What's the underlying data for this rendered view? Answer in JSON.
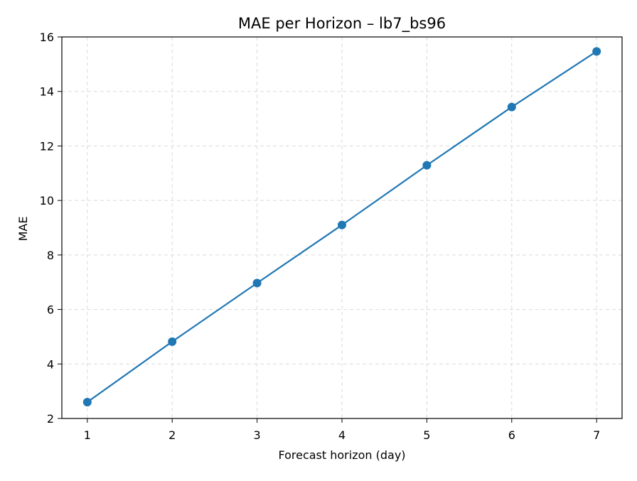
{
  "chart_data": {
    "type": "line",
    "title": "MAE per Horizon – lb7_bs96",
    "xlabel": "Forecast horizon (day)",
    "ylabel": "MAE",
    "x": [
      1,
      2,
      3,
      4,
      5,
      6,
      7
    ],
    "series": [
      {
        "values": [
          2.6,
          4.82,
          6.97,
          9.1,
          11.29,
          13.43,
          15.47
        ],
        "color": "#1f77b4"
      }
    ],
    "xlim": [
      0.7,
      7.3
    ],
    "ylim": [
      2.0,
      16.0
    ],
    "xticks": [
      1,
      2,
      3,
      4,
      5,
      6,
      7
    ],
    "yticks": [
      2,
      4,
      6,
      8,
      10,
      12,
      14,
      16
    ],
    "grid": true,
    "grid_style": "dashed",
    "markers": "circle"
  }
}
